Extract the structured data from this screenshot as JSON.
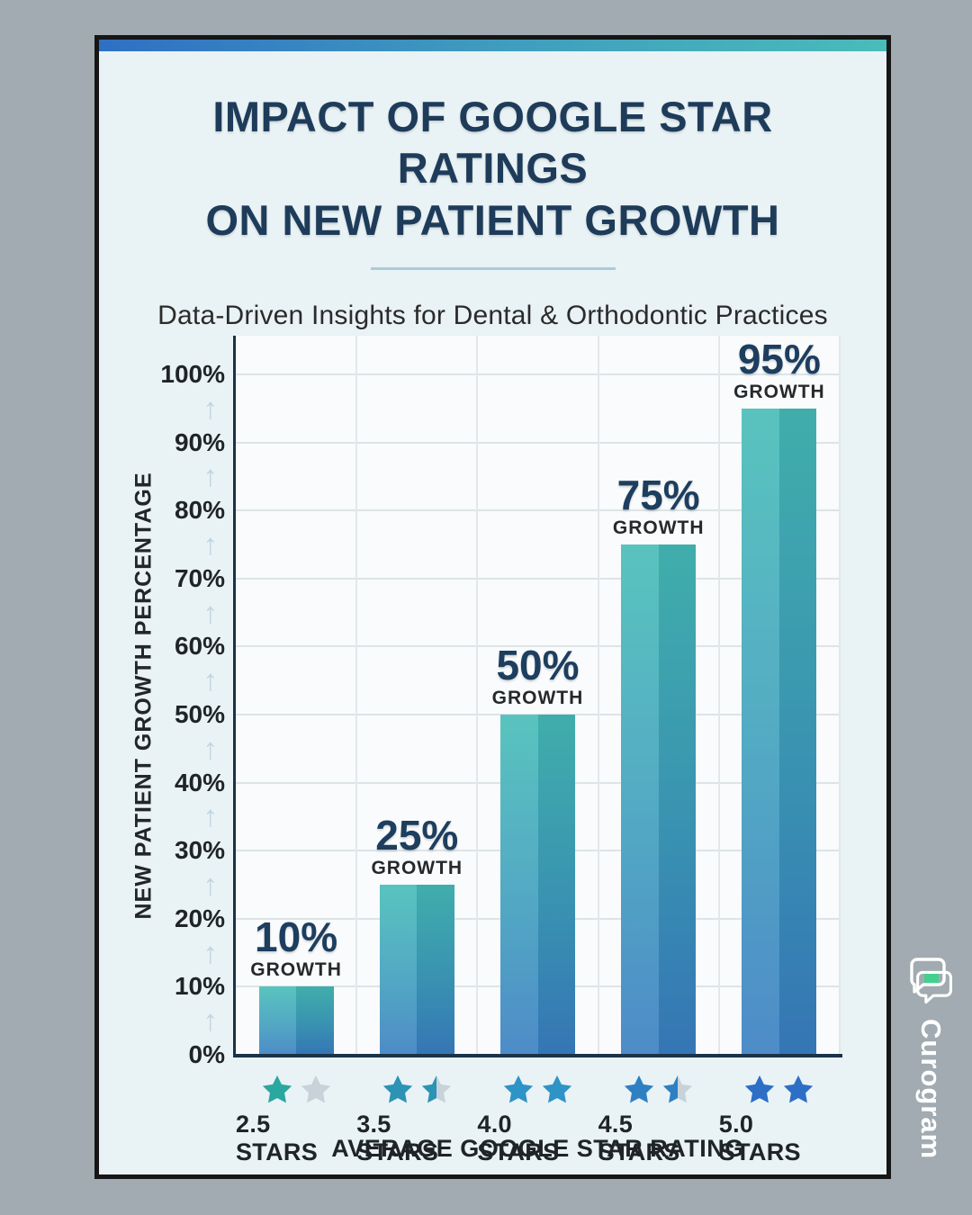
{
  "header": {
    "title_line1": "IMPACT OF GOOGLE STAR RATINGS",
    "title_line2": "ON NEW PATIENT GROWTH",
    "subtitle": "Data-Driven Insights for Dental & Orthodontic Practices"
  },
  "chart_data": {
    "type": "bar",
    "title": "IMPACT OF GOOGLE STAR RATINGS ON NEW PATIENT GROWTH",
    "xlabel": "AVERAGE GOOGLE STAR RATING",
    "ylabel": "NEW PATIENT GROWTH PERCENTAGE",
    "categories": [
      "2.5 STARS",
      "3.5 STARS",
      "4.0 STARS",
      "4.5 STARS",
      "5.0 STARS"
    ],
    "values": [
      10,
      25,
      50,
      75,
      95
    ],
    "value_labels": [
      "10%",
      "25%",
      "50%",
      "75%",
      "95%"
    ],
    "value_sublabel": "GROWTH",
    "yticks": [
      "0%",
      "10%",
      "20%",
      "30%",
      "40%",
      "50%",
      "60%",
      "70%",
      "80%",
      "90%",
      "100%"
    ],
    "ytick_values": [
      0,
      10,
      20,
      30,
      40,
      50,
      60,
      70,
      80,
      90,
      100
    ],
    "ylim": [
      0,
      105
    ],
    "grid": true,
    "legend": false,
    "tick_arrow_icon": "↑",
    "stars": [
      [
        {
          "fill": "#2aa79f",
          "type": "full"
        },
        {
          "fill": "#c8d3d9",
          "type": "full"
        }
      ],
      [
        {
          "fill": "#2c93b4",
          "type": "full"
        },
        {
          "fill": "#2c93b4",
          "type": "half"
        }
      ],
      [
        {
          "fill": "#2e93c6",
          "type": "full"
        },
        {
          "fill": "#2e93c6",
          "type": "full"
        }
      ],
      [
        {
          "fill": "#2e80c2",
          "type": "full"
        },
        {
          "fill": "#2e80c2",
          "type": "half"
        }
      ],
      [
        {
          "fill": "#2d6ec6",
          "type": "full"
        },
        {
          "fill": "#2d6ec6",
          "type": "full"
        }
      ]
    ],
    "star_empty_color": "#c8d3d9",
    "bar_gradient_top": "#47bdb7",
    "bar_gradient_mid": "#3f9fbe",
    "bar_gradient_bottom": "#3a7fc2"
  },
  "colors": {
    "page_background": "#a1abb1",
    "card_background": "#e9f2f5",
    "card_border": "#161616",
    "topbar_gradient_left": "#2f6fc4",
    "topbar_gradient_right": "#49bcba",
    "title_navy": "#1e3c5a",
    "subtitle_dark": "#2b2b2b",
    "divider_blue": "#a9cbd9",
    "plot_background": "#f9fbfc",
    "gridline": "#dde4e7",
    "axis_line": "#1b3248",
    "tick_text": "#1f2428",
    "tick_arrow": "#bed6df",
    "bar_label_navy": "#1d3e5e",
    "bar_label_dark": "#26292c",
    "watermark_green": "#43d08e",
    "watermark_white": "#ffffff"
  },
  "watermark": {
    "brand": "Curogram"
  }
}
